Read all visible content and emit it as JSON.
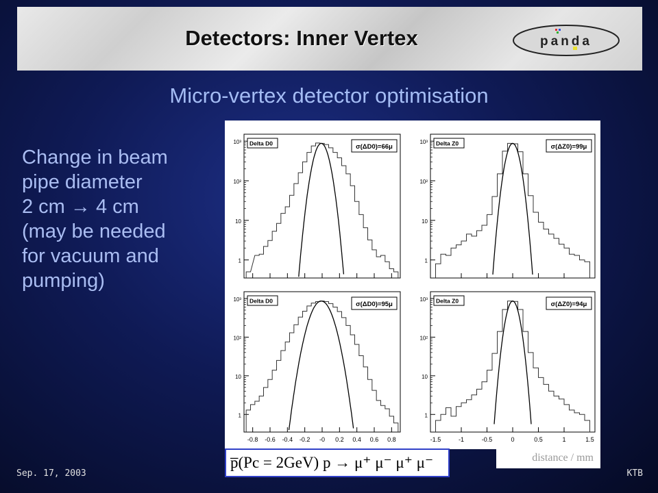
{
  "slide": {
    "title": "Detectors: Inner Vertex",
    "subtitle": "Micro-vertex detector optimisation",
    "body_lines": [
      "Change in beam",
      "pipe diameter",
      "2 cm → 4 cm",
      "(may be needed",
      "for vacuum and",
      "pumping)"
    ],
    "logo_text": "panda",
    "formula": "p̅(Pc = 2GeV) p → μ⁺ μ⁻  μ⁺ μ⁻",
    "x_units": "distance / mm",
    "date": "Sep. 17, 2003",
    "author": "KTB",
    "colors": {
      "background": "#0f1a55",
      "text": "#aabdf2",
      "banner": "#dcdcdc"
    }
  },
  "chart_data": [
    {
      "type": "histogram",
      "label": "Delta D0",
      "stat": "σ(ΔD0)=66μ",
      "x_ticks": [
        "-0.8",
        "-0.6",
        "-0.4",
        "-0.2",
        "-0",
        "0.2",
        "0.4",
        "0.6",
        "0.8"
      ],
      "xlim": [
        -0.9,
        0.9
      ],
      "y_ticks": [
        "1",
        "10",
        "10²",
        "10³"
      ],
      "y_log": true,
      "ylim": [
        0.35,
        1500
      ],
      "x_show_labels": false,
      "bin_centers": [
        -0.85,
        -0.75,
        -0.7,
        -0.65,
        -0.6,
        -0.55,
        -0.5,
        -0.45,
        -0.4,
        -0.35,
        -0.3,
        -0.25,
        -0.2,
        -0.15,
        -0.1,
        -0.05,
        0.0,
        0.05,
        0.1,
        0.15,
        0.2,
        0.25,
        0.3,
        0.35,
        0.4,
        0.45,
        0.5,
        0.55,
        0.6,
        0.65,
        0.7,
        0.75,
        0.8,
        0.85
      ],
      "counts": [
        0.5,
        1.3,
        1.4,
        2.2,
        3.1,
        5.3,
        8.4,
        15,
        22,
        43,
        85,
        160,
        300,
        520,
        760,
        900,
        880,
        820,
        680,
        520,
        380,
        240,
        150,
        75,
        30,
        14,
        6.5,
        3.2,
        1.8,
        1.2,
        1.3,
        0.9,
        0.6,
        0.5
      ],
      "fit": {
        "mu": -0.01,
        "sigma": 0.066,
        "amp": 880
      }
    },
    {
      "type": "histogram",
      "label": "Delta Z0",
      "stat": "σ(ΔZ0)=99μ",
      "x_ticks": [
        "-1.5",
        "-1",
        "-0.5",
        "0",
        "0.5",
        "1",
        "1.5"
      ],
      "xlim": [
        -1.6,
        1.6
      ],
      "y_ticks": [
        "1",
        "10",
        "10²",
        "10³"
      ],
      "y_log": true,
      "ylim": [
        0.35,
        1500
      ],
      "x_show_labels": false,
      "bin_centers": [
        -1.45,
        -1.35,
        -1.25,
        -1.15,
        -1.05,
        -0.95,
        -0.85,
        -0.75,
        -0.65,
        -0.55,
        -0.45,
        -0.35,
        -0.25,
        -0.15,
        -0.05,
        0.05,
        0.15,
        0.25,
        0.35,
        0.45,
        0.55,
        0.65,
        0.75,
        0.85,
        0.95,
        1.05,
        1.15,
        1.25,
        1.35,
        1.45
      ],
      "counts": [
        0.8,
        1.4,
        1.3,
        2.0,
        2.4,
        3.0,
        4.5,
        4.0,
        5.5,
        7.5,
        14,
        40,
        150,
        560,
        880,
        860,
        540,
        150,
        42,
        16,
        9,
        6,
        4.5,
        3.5,
        2.5,
        2.0,
        1.4,
        1.3,
        1.0,
        0.9
      ],
      "fit": {
        "mu": 0.0,
        "sigma": 0.099,
        "amp": 880
      }
    },
    {
      "type": "histogram",
      "label": "Delta D0",
      "stat": "σ(ΔD0)=95μ",
      "x_ticks": [
        "-0.8",
        "-0.6",
        "-0.4",
        "-0.2",
        "-0",
        "0.2",
        "0.4",
        "0.6",
        "0.8"
      ],
      "xlim": [
        -0.9,
        0.9
      ],
      "y_ticks": [
        "1",
        "10",
        "10²",
        "10³"
      ],
      "y_log": true,
      "ylim": [
        0.35,
        1500
      ],
      "x_show_labels": true,
      "bin_centers": [
        -0.85,
        -0.8,
        -0.75,
        -0.7,
        -0.65,
        -0.6,
        -0.55,
        -0.5,
        -0.45,
        -0.4,
        -0.35,
        -0.3,
        -0.25,
        -0.2,
        -0.15,
        -0.1,
        -0.05,
        0.0,
        0.05,
        0.1,
        0.15,
        0.2,
        0.25,
        0.3,
        0.35,
        0.4,
        0.45,
        0.5,
        0.55,
        0.6,
        0.65,
        0.7,
        0.75,
        0.8,
        0.85
      ],
      "counts": [
        1.3,
        1.8,
        2.2,
        3.0,
        5.0,
        8.0,
        14,
        25,
        45,
        75,
        130,
        210,
        330,
        470,
        640,
        760,
        830,
        860,
        830,
        740,
        600,
        460,
        320,
        200,
        115,
        65,
        33,
        17,
        8,
        4.2,
        2.3,
        1.7,
        1.4,
        0.9,
        0.6
      ],
      "fit": {
        "mu": -0.01,
        "sigma": 0.095,
        "amp": 860
      }
    },
    {
      "type": "histogram",
      "label": "Delta Z0",
      "stat": "σ(ΔZ0)=94μ",
      "x_ticks": [
        "-1.5",
        "-1",
        "-0.5",
        "0",
        "0.5",
        "1",
        "1.5"
      ],
      "xlim": [
        -1.6,
        1.6
      ],
      "y_ticks": [
        "1",
        "10",
        "10²",
        "10³"
      ],
      "y_log": true,
      "ylim": [
        0.35,
        1500
      ],
      "x_show_labels": true,
      "bin_centers": [
        -1.45,
        -1.35,
        -1.25,
        -1.15,
        -1.05,
        -0.95,
        -0.85,
        -0.75,
        -0.65,
        -0.55,
        -0.45,
        -0.35,
        -0.25,
        -0.15,
        -0.05,
        0.05,
        0.15,
        0.25,
        0.35,
        0.45,
        0.55,
        0.65,
        0.75,
        0.85,
        0.95,
        1.05,
        1.15,
        1.25,
        1.35,
        1.45
      ],
      "counts": [
        0.7,
        1.0,
        1.5,
        0.9,
        1.6,
        2.0,
        2.4,
        3.2,
        4.5,
        7.0,
        14,
        38,
        140,
        520,
        860,
        840,
        520,
        140,
        40,
        16,
        9,
        6,
        4,
        3,
        2.5,
        1.8,
        1.3,
        1.1,
        1.0,
        0.7
      ],
      "fit": {
        "mu": 0.0,
        "sigma": 0.094,
        "amp": 860
      }
    }
  ]
}
